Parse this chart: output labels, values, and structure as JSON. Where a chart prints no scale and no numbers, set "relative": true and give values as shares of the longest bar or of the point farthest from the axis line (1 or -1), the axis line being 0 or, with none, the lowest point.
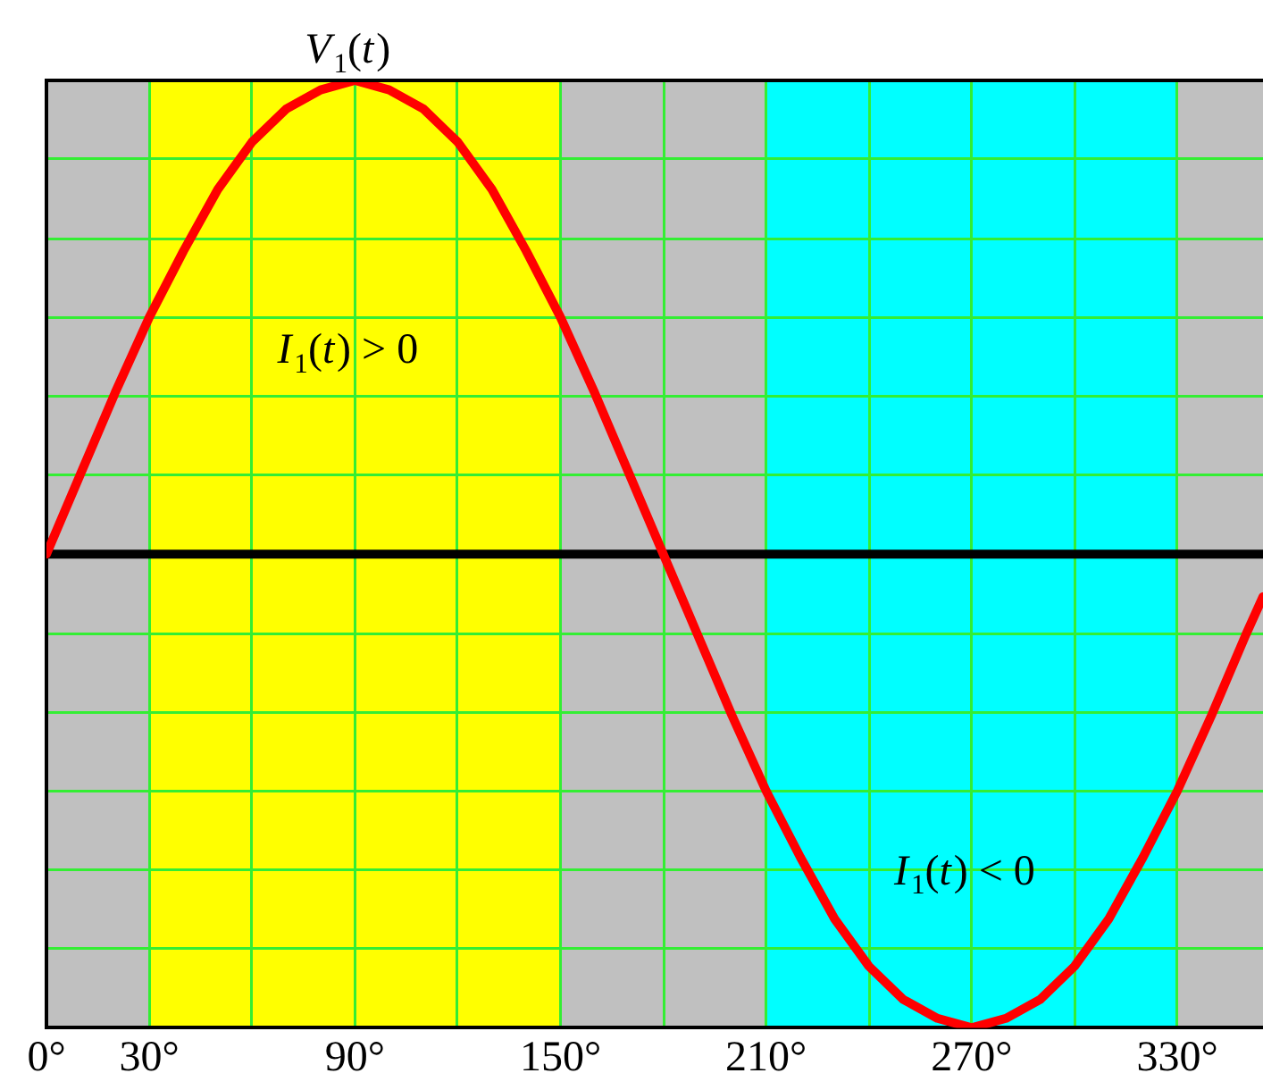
{
  "chart_data": {
    "type": "line",
    "relative": true,
    "x": [
      0,
      10,
      20,
      30,
      40,
      50,
      60,
      70,
      80,
      90,
      100,
      110,
      120,
      130,
      140,
      150,
      160,
      170,
      180,
      190,
      200,
      210,
      220,
      230,
      240,
      250,
      260,
      270,
      280,
      290,
      300,
      310,
      320,
      330,
      340,
      350,
      355
    ],
    "series": [
      {
        "name": "V$_{1}$(t)",
        "color": "#ff0000",
        "values": [
          0,
          0.17,
          0.34,
          0.5,
          0.64,
          0.77,
          0.87,
          0.94,
          0.98,
          1,
          0.98,
          0.94,
          0.87,
          0.77,
          0.64,
          0.5,
          0.34,
          0.17,
          0,
          -0.17,
          -0.34,
          -0.5,
          -0.64,
          -0.77,
          -0.87,
          -0.94,
          -0.98,
          -1,
          -0.98,
          -0.94,
          -0.87,
          -0.77,
          -0.64,
          -0.5,
          -0.34,
          -0.17,
          -0.09
        ]
      }
    ],
    "xlim": [
      0,
      355
    ],
    "xticks": [
      {
        "value": 0,
        "label": "0°"
      },
      {
        "value": 30,
        "label": "30°"
      },
      {
        "value": 60,
        "label": null
      },
      {
        "value": 90,
        "label": "90°"
      },
      {
        "value": 120,
        "label": null
      },
      {
        "value": 150,
        "label": "150°"
      },
      {
        "value": 180,
        "label": null
      },
      {
        "value": 210,
        "label": "210°"
      },
      {
        "value": 240,
        "label": null
      },
      {
        "value": 270,
        "label": "270°"
      },
      {
        "value": 300,
        "label": null
      },
      {
        "value": 330,
        "label": "330°"
      }
    ],
    "grid": true,
    "legend": false,
    "marker": "none",
    "line_style": "solid",
    "bands": [
      {
        "axis": "x",
        "from": 30,
        "to": 150,
        "color": "#ffff00",
        "label": "I$_{1}$(t) > 0"
      },
      {
        "axis": "x",
        "from": 210,
        "to": 330,
        "color": "#00ffff",
        "label": "I$_{1}$(t) < 0"
      }
    ],
    "ref_lines": [
      {
        "axis": "y",
        "value": 0,
        "color": "#000000"
      }
    ]
  }
}
